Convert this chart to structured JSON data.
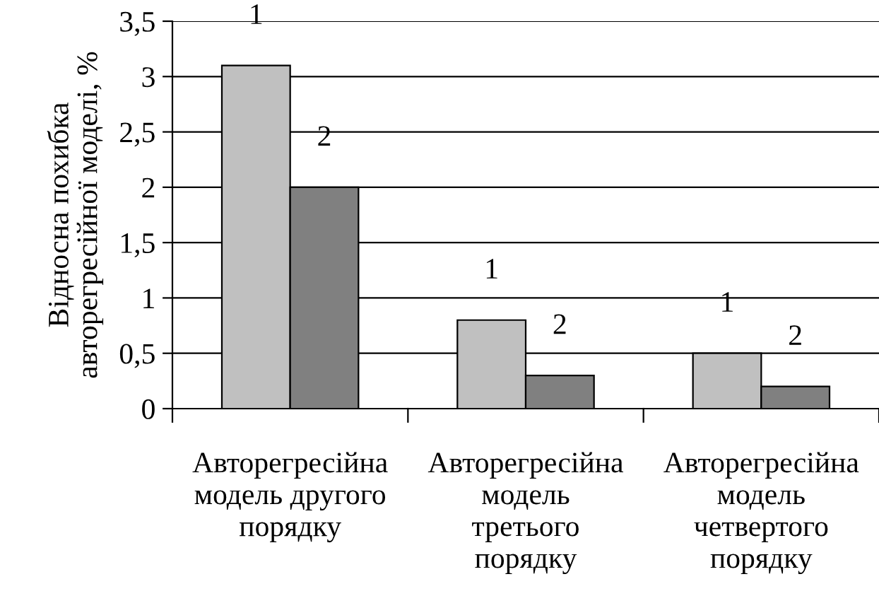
{
  "chart_data": {
    "type": "bar",
    "ylabel": "Відносна похибка\nавторегресійної моделі, %",
    "categories": [
      "Авторегресійна\nмодель другого\nпорядку",
      "Авторегресійна\nмодель\nтретього\nпорядку",
      "Авторегресійна\nмодель\nчетвертого\nпорядку"
    ],
    "series": [
      {
        "name": "1",
        "color": "#c0c0c0",
        "values": [
          3.1,
          0.8,
          0.5
        ]
      },
      {
        "name": "2",
        "color": "#808080",
        "values": [
          2.0,
          0.3,
          0.2
        ]
      }
    ],
    "ylim": [
      0,
      3.5
    ],
    "yticks": [
      0,
      {
        "value": 0.5,
        "label": "0,5"
      },
      1,
      {
        "value": 1.5,
        "label": "1,5"
      },
      2,
      {
        "value": 2.5,
        "label": "2,5"
      },
      3,
      {
        "value": 3.5,
        "label": "3,5"
      }
    ],
    "grid": "y",
    "legend": false
  }
}
